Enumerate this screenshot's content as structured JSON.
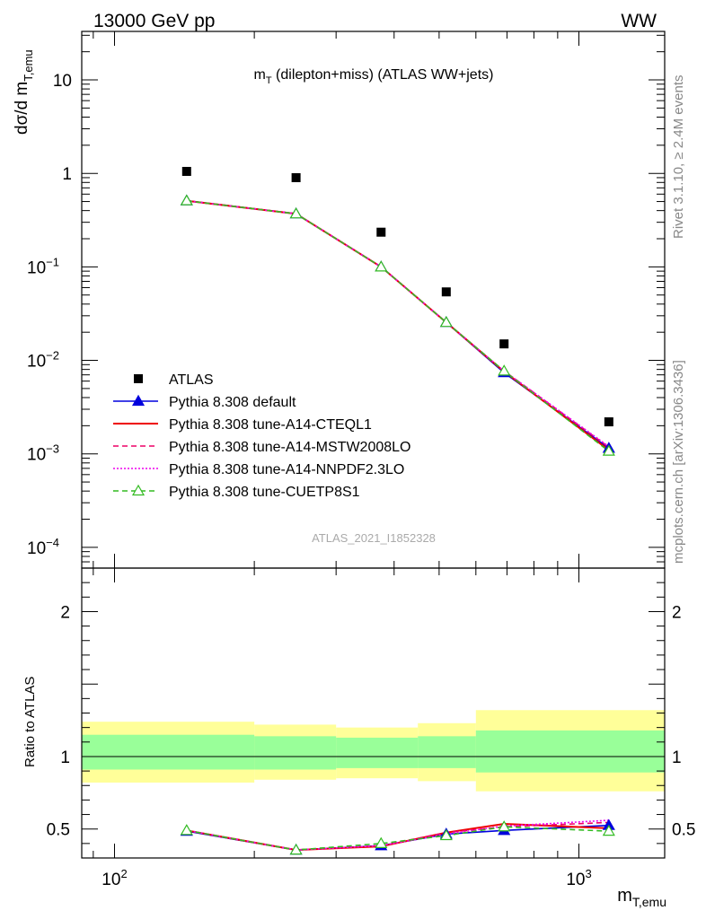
{
  "header": {
    "energy_label": "13000 GeV pp",
    "process_label": "WW"
  },
  "side_labels": {
    "rivet_version": "Rivet 3.1.10, ≥ 2.4M events",
    "source": "mcplots.cern.ch [arXiv:1306.3436]"
  },
  "chart_data": [
    {
      "type": "scatter",
      "panel": "main",
      "title": "m_T (dilepton+miss) (ATLAS WW+jets)",
      "ylabel": "dσ/d m_T,emu",
      "xlabel": "m_T,emu",
      "watermark": "ATLAS_2021_I1852328",
      "x_scale": "log",
      "y_scale": "log",
      "xlim": [
        85,
        1530
      ],
      "ylim": [
        6e-05,
        33
      ],
      "x_tick_labels": [
        "10^2",
        "10^3"
      ],
      "y_tick_labels": [
        "10",
        "1",
        "10^-1",
        "10^-2",
        "10^-3",
        "10^-4"
      ],
      "legend_position": "bottom-left",
      "bins": [
        [
          85,
          200
        ],
        [
          200,
          300
        ],
        [
          300,
          450
        ],
        [
          450,
          600
        ],
        [
          600,
          800
        ],
        [
          800,
          1530
        ]
      ],
      "x": [
        143,
        246,
        375,
        518,
        690,
        1160
      ],
      "series": [
        {
          "name": "ATLAS",
          "style": "data",
          "color": "#000000",
          "values": [
            1.05,
            0.9,
            0.235,
            0.054,
            0.015,
            0.0022
          ]
        },
        {
          "name": "Pythia 8.308 default",
          "style": "triangle-filled",
          "color": "#0000dd",
          "values": [
            0.51,
            0.37,
            0.1,
            0.0255,
            0.0074,
            0.00115
          ]
        },
        {
          "name": "Pythia 8.308 tune-A14-CTEQL1",
          "style": "solid",
          "color": "#ee0000",
          "values": [
            0.51,
            0.37,
            0.1,
            0.0255,
            0.0076,
            0.0011
          ]
        },
        {
          "name": "Pythia 8.308 tune-A14-MSTW2008LO",
          "style": "dashed",
          "color": "#ee0066",
          "values": [
            0.51,
            0.37,
            0.1,
            0.0255,
            0.0077,
            0.00118
          ]
        },
        {
          "name": "Pythia 8.308 tune-A14-NNPDF2.3LO",
          "style": "dotted",
          "color": "#ee00ee",
          "values": [
            0.51,
            0.37,
            0.1,
            0.0255,
            0.0077,
            0.0012
          ]
        },
        {
          "name": "Pythia 8.308 tune-CUETP8S1",
          "style": "triangle-open-dashed",
          "color": "#33bb22",
          "values": [
            0.51,
            0.37,
            0.1,
            0.0255,
            0.0077,
            0.00107
          ]
        }
      ]
    },
    {
      "type": "line",
      "panel": "ratio",
      "ylabel": "Ratio to ATLAS",
      "ylim": [
        0.3,
        2.3
      ],
      "y_tick_labels": [
        "0.5",
        "1",
        "2"
      ],
      "band_colors": {
        "inner": "#99ff99",
        "outer": "#ffff99"
      },
      "bands": [
        {
          "x": [
            85,
            200
          ],
          "inner": [
            0.91,
            1.15
          ],
          "outer": [
            0.82,
            1.24
          ]
        },
        {
          "x": [
            200,
            300
          ],
          "inner": [
            0.91,
            1.14
          ],
          "outer": [
            0.84,
            1.22
          ]
        },
        {
          "x": [
            300,
            450
          ],
          "inner": [
            0.92,
            1.13
          ],
          "outer": [
            0.85,
            1.2
          ]
        },
        {
          "x": [
            450,
            600
          ],
          "inner": [
            0.92,
            1.14
          ],
          "outer": [
            0.83,
            1.23
          ]
        },
        {
          "x": [
            600,
            1530
          ],
          "inner": [
            0.89,
            1.18
          ],
          "outer": [
            0.76,
            1.32
          ]
        }
      ],
      "x": [
        143,
        246,
        375,
        518,
        690,
        1160
      ],
      "series": [
        {
          "name": "Pythia 8.308 default",
          "color": "#0000dd",
          "style": "triangle-filled",
          "values": [
            0.485,
            0.355,
            0.385,
            0.465,
            0.49,
            0.525
          ]
        },
        {
          "name": "Pythia 8.308 tune-A14-CTEQL1",
          "color": "#ee0000",
          "style": "solid",
          "values": [
            0.49,
            0.355,
            0.38,
            0.475,
            0.535,
            0.505
          ]
        },
        {
          "name": "Pythia 8.308 tune-A14-MSTW2008LO",
          "color": "#ee0066",
          "style": "dashed",
          "values": [
            0.49,
            0.355,
            0.385,
            0.475,
            0.515,
            0.545
          ]
        },
        {
          "name": "Pythia 8.308 tune-A14-NNPDF2.3LO",
          "color": "#ee00ee",
          "style": "dotted",
          "values": [
            0.49,
            0.355,
            0.385,
            0.465,
            0.52,
            0.56
          ]
        },
        {
          "name": "Pythia 8.308 tune-CUETP8S1",
          "color": "#33bb22",
          "style": "triangle-open-dashed",
          "values": [
            0.49,
            0.355,
            0.4,
            0.455,
            0.515,
            0.485
          ]
        }
      ]
    }
  ]
}
